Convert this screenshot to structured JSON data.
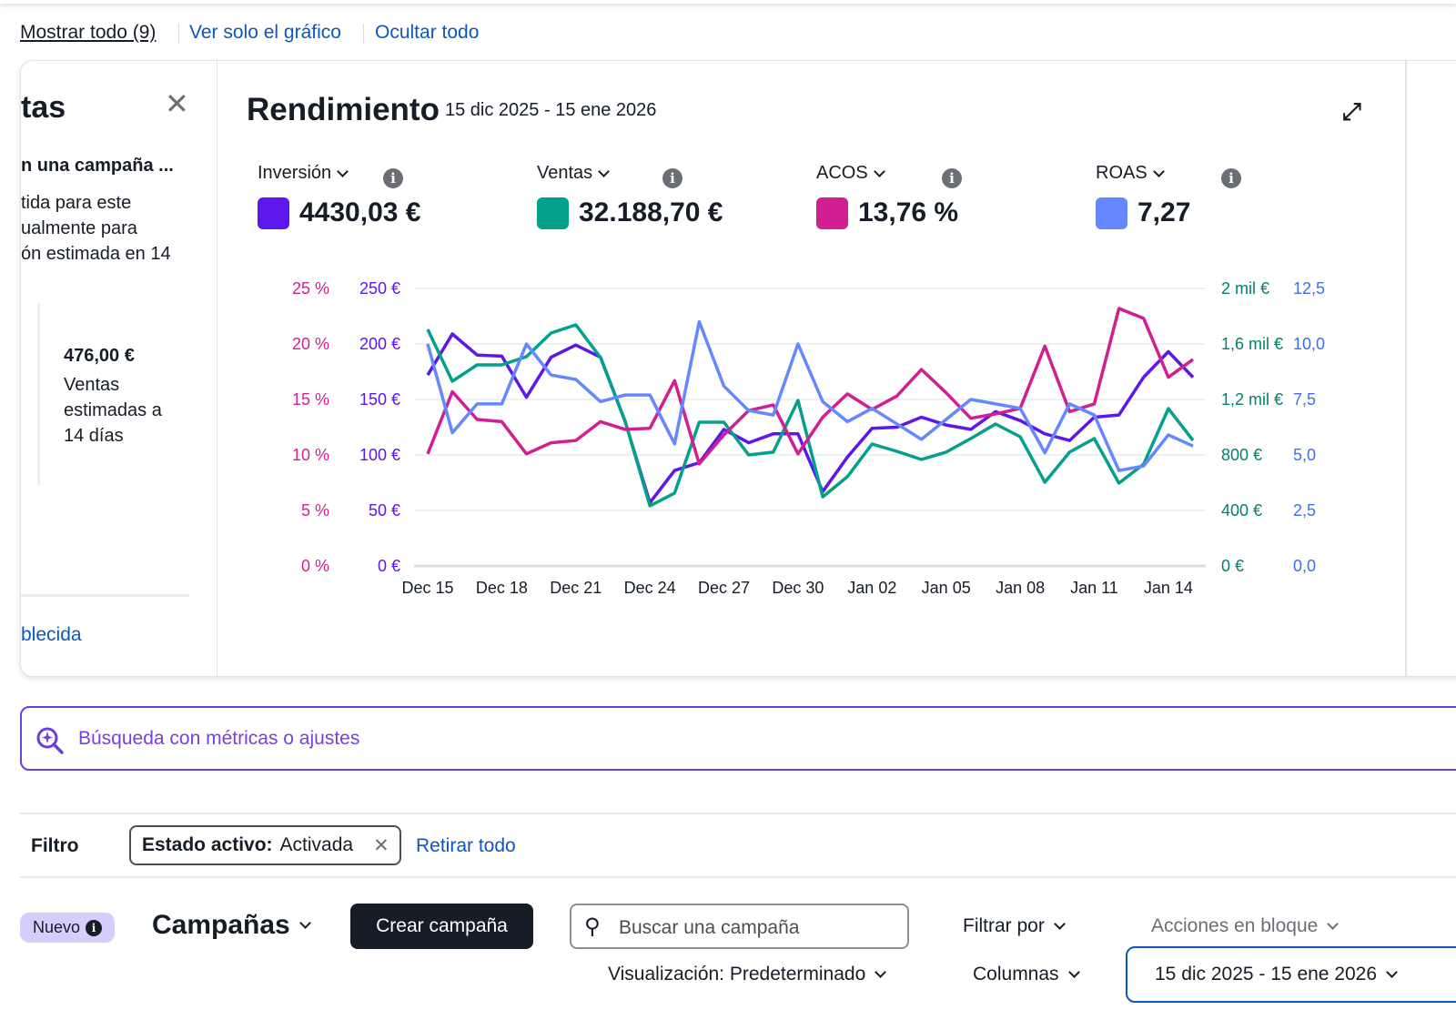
{
  "view_links": {
    "show_all": "Mostrar todo (9)",
    "chart_only": "Ver solo el gráfico",
    "hide_all": "Ocultar todo"
  },
  "left_panel": {
    "title": "tas",
    "subtitle": "n una campaña ...",
    "lines": [
      "tida para este",
      "ualmente para",
      "ón estimada en 14"
    ],
    "amount": "476,00 €",
    "amount_desc": [
      "Ventas",
      "estimadas a",
      "14 días"
    ],
    "link": "blecida"
  },
  "performance": {
    "title": "Rendimiento",
    "date_range": "15 dic 2025 - 15 ene 2026",
    "metrics": [
      {
        "label": "Inversión",
        "value": "4430,03 €",
        "color": "#5e17eb"
      },
      {
        "label": "Ventas",
        "value": "32.188,70 €",
        "color": "#03a08c"
      },
      {
        "label": "ACOS",
        "value": "13,76 %",
        "color": "#d11f91"
      },
      {
        "label": "ROAS",
        "value": "7,27",
        "color": "#6488ff"
      }
    ]
  },
  "chart_data": {
    "type": "line",
    "x": [
      "Dec 15",
      "Dec 16",
      "Dec 17",
      "Dec 18",
      "Dec 19",
      "Dec 20",
      "Dec 21",
      "Dec 22",
      "Dec 23",
      "Dec 24",
      "Dec 25",
      "Dec 26",
      "Dec 27",
      "Dec 28",
      "Dec 29",
      "Dec 30",
      "Dec 31",
      "Jan 01",
      "Jan 02",
      "Jan 03",
      "Jan 04",
      "Jan 05",
      "Jan 06",
      "Jan 07",
      "Jan 08",
      "Jan 09",
      "Jan 10",
      "Jan 11",
      "Jan 12",
      "Jan 13",
      "Jan 14",
      "Jan 15"
    ],
    "xtick_labels": [
      "Dec 15",
      "Dec 18",
      "Dec 21",
      "Dec 24",
      "Dec 27",
      "Dec 30",
      "Jan 02",
      "Jan 05",
      "Jan 08",
      "Jan 11",
      "Jan 14"
    ],
    "axes": {
      "acos": {
        "ticks": [
          "0 %",
          "5 %",
          "10 %",
          "15 %",
          "20 %",
          "25 %"
        ],
        "range": [
          0,
          25
        ],
        "color": "#d11f91"
      },
      "spend": {
        "ticks": [
          "0 €",
          "50 €",
          "100 €",
          "150 €",
          "200 €",
          "250 €"
        ],
        "range": [
          0,
          250
        ],
        "color": "#5e17eb"
      },
      "sales": {
        "ticks": [
          "0 €",
          "400 €",
          "800 €",
          "1,2 mil €",
          "1,6 mil €",
          "2 mil €"
        ],
        "range": [
          0,
          2000
        ],
        "color": "#03806f"
      },
      "roas": {
        "ticks": [
          "0,0",
          "2,5",
          "5,0",
          "7,5",
          "10,0",
          "12,5"
        ],
        "range": [
          0,
          12.5
        ],
        "color": "#3d6ef0"
      }
    },
    "series": [
      {
        "name": "Inversión",
        "axis": "spend",
        "color": "#5e17eb",
        "values": [
          172,
          209,
          190,
          189,
          152,
          188,
          199,
          188,
          130,
          57,
          86,
          93,
          123,
          111,
          119,
          119,
          67,
          98,
          124,
          125,
          134,
          127,
          123,
          139,
          131,
          119,
          113,
          134,
          136,
          170,
          193,
          170
        ]
      },
      {
        "name": "Ventas",
        "axis": "sales",
        "color": "#03a08c",
        "values": [
          1705,
          1331,
          1449,
          1449,
          1508,
          1679,
          1738,
          1502,
          1043,
          433,
          525,
          1036,
          1036,
          800,
          820,
          1193,
          498,
          643,
          879,
          826,
          767,
          820,
          918,
          1023,
          931,
          603,
          820,
          918,
          597,
          734,
          1134,
          905
        ]
      },
      {
        "name": "ACOS",
        "axis": "acos",
        "color": "#d11f91",
        "values": [
          10.1,
          15.7,
          13.2,
          13.0,
          10.1,
          11.1,
          11.3,
          13.0,
          12.3,
          12.4,
          16.7,
          9.2,
          11.8,
          14.0,
          14.5,
          10.1,
          13.4,
          15.5,
          14.1,
          15.3,
          17.7,
          15.6,
          13.3,
          13.7,
          14.2,
          19.8,
          13.9,
          14.6,
          23.2,
          22.3,
          17.0,
          18.6
        ]
      },
      {
        "name": "ROAS",
        "axis": "roas",
        "color": "#6488ff",
        "values": [
          10.0,
          6.0,
          7.3,
          7.3,
          10.0,
          8.6,
          8.4,
          7.4,
          7.7,
          7.7,
          5.5,
          11.0,
          8.1,
          7.0,
          6.8,
          10.0,
          7.4,
          6.5,
          7.1,
          6.4,
          5.7,
          6.6,
          7.5,
          7.3,
          7.1,
          5.1,
          7.3,
          6.8,
          4.3,
          4.5,
          5.9,
          5.4
        ]
      }
    ],
    "grid": true
  },
  "search": {
    "placeholder": "Búsqueda con métricas o ajustes"
  },
  "filter": {
    "label": "Filtro",
    "chip_key": "Estado activo:",
    "chip_value": "Activada",
    "clear_all": "Retirar todo"
  },
  "toolbar": {
    "new_badge": "Nuevo",
    "campaigns": "Campañas",
    "create": "Crear campaña",
    "search_placeholder": "Buscar una campaña",
    "filter_by": "Filtrar por",
    "bulk_actions": "Acciones en bloque",
    "view": "Visualización: Predeterminado",
    "columns": "Columnas",
    "date_range": "15 dic 2025 - 15 ene 2026"
  }
}
